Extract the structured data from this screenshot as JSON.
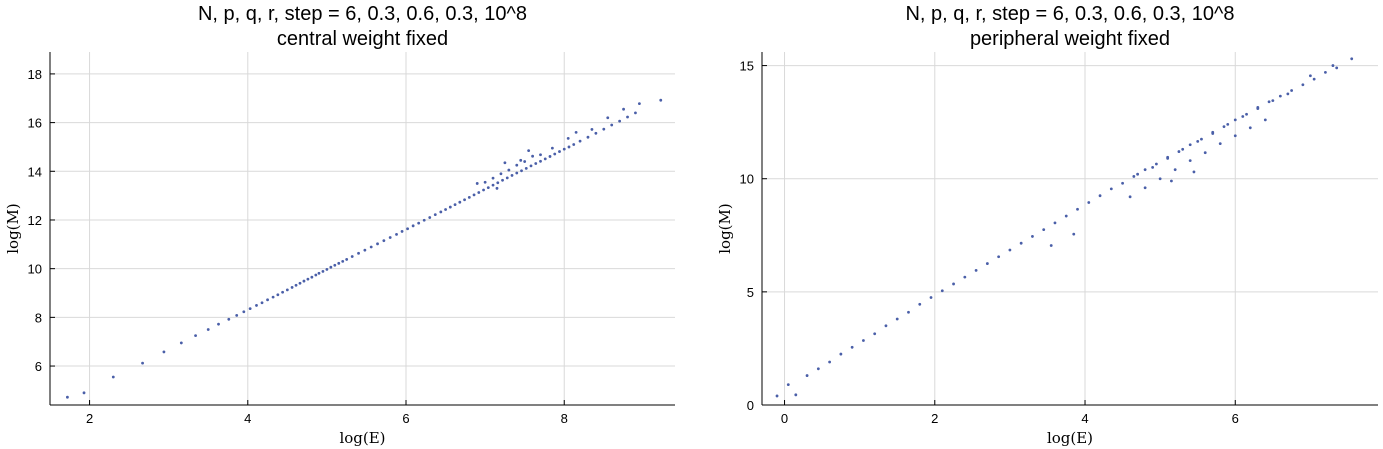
{
  "chart_data": [
    {
      "type": "scatter",
      "title": "N, p, q, r, step = 6, 0.3, 0.6, 0.3, 10^8",
      "subtitle": "central weight fixed",
      "xlabel": "log(E)",
      "ylabel": "log(M)",
      "xlim": [
        1.5,
        9.4
      ],
      "ylim": [
        4.4,
        18.9
      ],
      "xticks": [
        2,
        4,
        6,
        8
      ],
      "yticks": [
        6,
        8,
        10,
        12,
        14,
        16,
        18
      ],
      "grid": true,
      "marker_color": "#4a5fa8",
      "series": [
        {
          "name": "data",
          "x": [
            1.72,
            1.93,
            2.3,
            2.67,
            2.94,
            3.16,
            3.34,
            3.5,
            3.63,
            3.76,
            3.86,
            3.95,
            4.03,
            4.11,
            4.18,
            4.25,
            4.32,
            4.38,
            4.44,
            4.5,
            4.56,
            4.61,
            4.66,
            4.71,
            4.76,
            4.81,
            4.86,
            4.9,
            4.95,
            5.0,
            5.05,
            5.1,
            5.15,
            5.2,
            5.25,
            5.32,
            5.4,
            5.48,
            5.56,
            5.64,
            5.72,
            5.8,
            5.88,
            5.95,
            6.02,
            6.09,
            6.16,
            6.23,
            6.3,
            6.37,
            6.44,
            6.5,
            6.56,
            6.62,
            6.68,
            6.74,
            6.8,
            6.86,
            6.92,
            6.98,
            7.04,
            7.1,
            7.16,
            7.22,
            7.28,
            7.34,
            7.4,
            7.46,
            7.52,
            7.58,
            7.64,
            7.7,
            7.76,
            7.82,
            7.88,
            7.94,
            8.0,
            8.06,
            8.12,
            8.2,
            8.3,
            8.4,
            8.5,
            8.6,
            8.7,
            8.8,
            8.9,
            9.22,
            7.0,
            7.1,
            7.2,
            7.3,
            7.4,
            7.5,
            7.6,
            6.9,
            7.15,
            7.45,
            7.7,
            7.85,
            8.05,
            8.15,
            8.35,
            8.55,
            8.75,
            8.95,
            7.25,
            7.55
          ],
          "y": [
            4.72,
            4.9,
            5.55,
            6.12,
            6.58,
            6.95,
            7.25,
            7.5,
            7.72,
            7.92,
            8.08,
            8.23,
            8.36,
            8.49,
            8.6,
            8.72,
            8.83,
            8.93,
            9.03,
            9.13,
            9.23,
            9.32,
            9.4,
            9.49,
            9.57,
            9.65,
            9.74,
            9.81,
            9.89,
            9.97,
            10.06,
            10.14,
            10.22,
            10.3,
            10.38,
            10.5,
            10.63,
            10.76,
            10.89,
            11.02,
            11.15,
            11.28,
            11.41,
            11.53,
            11.64,
            11.76,
            11.87,
            11.99,
            12.1,
            12.22,
            12.33,
            12.43,
            12.53,
            12.63,
            12.73,
            12.83,
            12.93,
            13.03,
            13.13,
            13.23,
            13.33,
            13.43,
            13.53,
            13.63,
            13.73,
            13.83,
            13.93,
            14.02,
            14.12,
            14.22,
            14.32,
            14.41,
            14.51,
            14.61,
            14.71,
            14.81,
            14.91,
            15.0,
            15.1,
            15.24,
            15.4,
            15.56,
            15.73,
            15.9,
            16.06,
            16.23,
            16.4,
            16.92,
            13.55,
            13.72,
            13.9,
            14.05,
            14.25,
            14.4,
            14.62,
            13.5,
            13.3,
            14.45,
            14.68,
            14.95,
            15.35,
            15.6,
            15.72,
            16.2,
            16.55,
            16.78,
            14.35,
            14.85
          ]
        }
      ]
    },
    {
      "type": "scatter",
      "title": "N, p, q, r, step = 6, 0.3, 0.6, 0.3, 10^8",
      "subtitle": "peripheral weight fixed",
      "xlabel": "log(E)",
      "ylabel": "log(M)",
      "xlim": [
        -0.3,
        7.9
      ],
      "ylim": [
        0,
        15.6
      ],
      "xticks": [
        0,
        2,
        4,
        6
      ],
      "yticks": [
        0,
        5,
        10,
        15
      ],
      "grid": true,
      "marker_color": "#4a5fa8",
      "series": [
        {
          "name": "data",
          "x": [
            -0.1,
            0.05,
            0.15,
            0.3,
            0.45,
            0.6,
            0.75,
            0.9,
            1.05,
            1.2,
            1.35,
            1.5,
            1.65,
            1.8,
            1.95,
            2.1,
            2.25,
            2.4,
            2.55,
            2.7,
            2.85,
            3.0,
            3.15,
            3.3,
            3.45,
            3.6,
            3.75,
            3.9,
            4.05,
            4.2,
            4.35,
            4.5,
            4.65,
            4.8,
            4.95,
            5.1,
            5.25,
            5.4,
            5.55,
            5.7,
            5.85,
            6.0,
            6.15,
            6.3,
            6.45,
            6.6,
            6.75,
            6.9,
            7.05,
            7.2,
            7.35,
            7.55,
            4.6,
            4.8,
            5.0,
            5.2,
            5.4,
            5.6,
            5.8,
            6.0,
            6.2,
            6.4,
            4.7,
            4.9,
            5.1,
            5.3,
            5.5,
            5.7,
            5.9,
            6.1,
            6.3,
            6.5,
            3.55,
            3.85,
            6.7,
            7.0,
            7.3,
            5.15,
            5.45
          ],
          "y": [
            0.4,
            0.9,
            0.45,
            1.3,
            1.6,
            1.9,
            2.25,
            2.55,
            2.85,
            3.15,
            3.5,
            3.8,
            4.1,
            4.45,
            4.75,
            5.05,
            5.35,
            5.65,
            5.95,
            6.25,
            6.55,
            6.85,
            7.15,
            7.45,
            7.75,
            8.05,
            8.35,
            8.65,
            8.95,
            9.25,
            9.55,
            9.8,
            10.1,
            10.4,
            10.65,
            10.95,
            11.2,
            11.5,
            11.75,
            12.05,
            12.3,
            12.6,
            12.85,
            13.15,
            13.4,
            13.65,
            13.9,
            14.15,
            14.4,
            14.7,
            14.9,
            15.3,
            9.2,
            9.6,
            10.0,
            10.4,
            10.8,
            11.15,
            11.55,
            11.9,
            12.25,
            12.6,
            10.2,
            10.5,
            10.9,
            11.3,
            11.65,
            12.0,
            12.4,
            12.75,
            13.1,
            13.45,
            7.05,
            7.55,
            13.75,
            14.55,
            15.0,
            9.9,
            10.3
          ]
        }
      ]
    }
  ]
}
